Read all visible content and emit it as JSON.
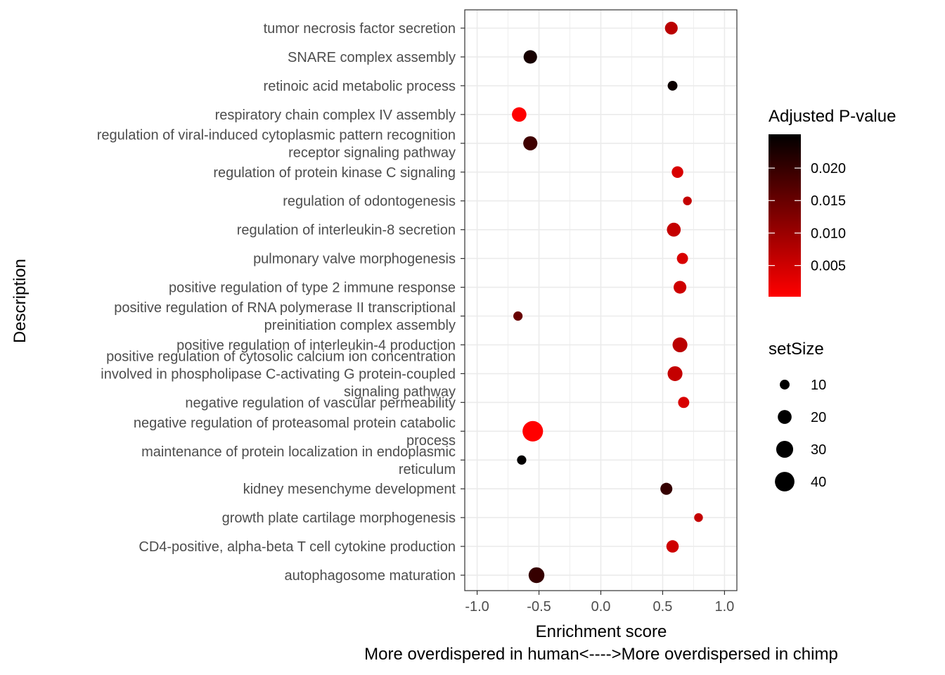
{
  "chart_data": {
    "type": "scatter",
    "xlabel": "Enrichment score",
    "xlabel_line2": "More overdispered in human<---->More overdispersed in chimp",
    "ylabel": "Description",
    "xlim": [
      -1.1,
      1.1
    ],
    "x_ticks": [
      -1.0,
      -0.5,
      0.0,
      0.5,
      1.0
    ],
    "x_tick_labels": [
      "-1.0",
      "-0.5",
      "0.0",
      "0.5",
      "1.0"
    ],
    "grid": true,
    "color_legend": {
      "title": "Adjusted P-value",
      "range": [
        0.0002,
        0.0252
      ],
      "ticks": [
        0.02,
        0.015,
        0.01,
        0.005
      ],
      "tick_labels": [
        "0.020",
        "0.015",
        "0.010",
        "0.005"
      ],
      "low_color": "#ff0000",
      "high_color": "#000000"
    },
    "size_legend": {
      "title": "setSize",
      "values": [
        10,
        20,
        30,
        40
      ],
      "labels": [
        "10",
        "20",
        "30",
        "40"
      ]
    },
    "points": [
      {
        "label": [
          "tumor necrosis factor secretion"
        ],
        "x": 0.57,
        "p_adj": 0.007,
        "size": 17
      },
      {
        "label": [
          "SNARE complex assembly"
        ],
        "x": -0.57,
        "p_adj": 0.023,
        "size": 19
      },
      {
        "label": [
          "retinoic acid metabolic process"
        ],
        "x": 0.58,
        "p_adj": 0.024,
        "size": 10
      },
      {
        "label": [
          "respiratory chain complex IV assembly"
        ],
        "x": -0.66,
        "p_adj": 0.0003,
        "size": 22
      },
      {
        "label": [
          "regulation of viral-induced cytoplasmic pattern recognition",
          "receptor signaling pathway"
        ],
        "x": -0.57,
        "p_adj": 0.019,
        "size": 21
      },
      {
        "label": [
          "regulation of protein kinase C signaling"
        ],
        "x": 0.62,
        "p_adj": 0.004,
        "size": 14
      },
      {
        "label": [
          "regulation of odontogenesis"
        ],
        "x": 0.7,
        "p_adj": 0.006,
        "size": 8
      },
      {
        "label": [
          "regulation of interleukin-8 secretion"
        ],
        "x": 0.59,
        "p_adj": 0.006,
        "size": 20
      },
      {
        "label": [
          "pulmonary valve morphogenesis"
        ],
        "x": 0.66,
        "p_adj": 0.004,
        "size": 13
      },
      {
        "label": [
          "positive regulation of type 2 immune response"
        ],
        "x": 0.64,
        "p_adj": 0.005,
        "size": 17
      },
      {
        "label": [
          "positive regulation of RNA polymerase II transcriptional",
          "preinitiation complex assembly"
        ],
        "x": -0.67,
        "p_adj": 0.015,
        "size": 9
      },
      {
        "label": [
          "positive regulation of interleukin-4 production"
        ],
        "x": 0.64,
        "p_adj": 0.007,
        "size": 23
      },
      {
        "label": [
          "positive regulation of cytosolic calcium ion concentration",
          "involved in phospholipase C-activating G protein-coupled",
          "signaling pathway"
        ],
        "x": 0.6,
        "p_adj": 0.006,
        "size": 23
      },
      {
        "label": [
          "negative regulation of vascular permeability"
        ],
        "x": 0.67,
        "p_adj": 0.004,
        "size": 13
      },
      {
        "label": [
          "negative regulation of proteasomal protein catabolic",
          "process"
        ],
        "x": -0.55,
        "p_adj": 0.0002,
        "size": 44
      },
      {
        "label": [
          "maintenance of protein localization in endoplasmic",
          "reticulum"
        ],
        "x": -0.64,
        "p_adj": 0.025,
        "size": 9
      },
      {
        "label": [
          "kidney mesenchyme development"
        ],
        "x": 0.53,
        "p_adj": 0.02,
        "size": 15
      },
      {
        "label": [
          "growth plate cartilage morphogenesis"
        ],
        "x": 0.79,
        "p_adj": 0.006,
        "size": 8
      },
      {
        "label": [
          "CD4-positive, alpha-beta T cell cytokine production"
        ],
        "x": 0.58,
        "p_adj": 0.005,
        "size": 16
      },
      {
        "label": [
          "autophagosome maturation"
        ],
        "x": -0.52,
        "p_adj": 0.02,
        "size": 26
      }
    ]
  }
}
